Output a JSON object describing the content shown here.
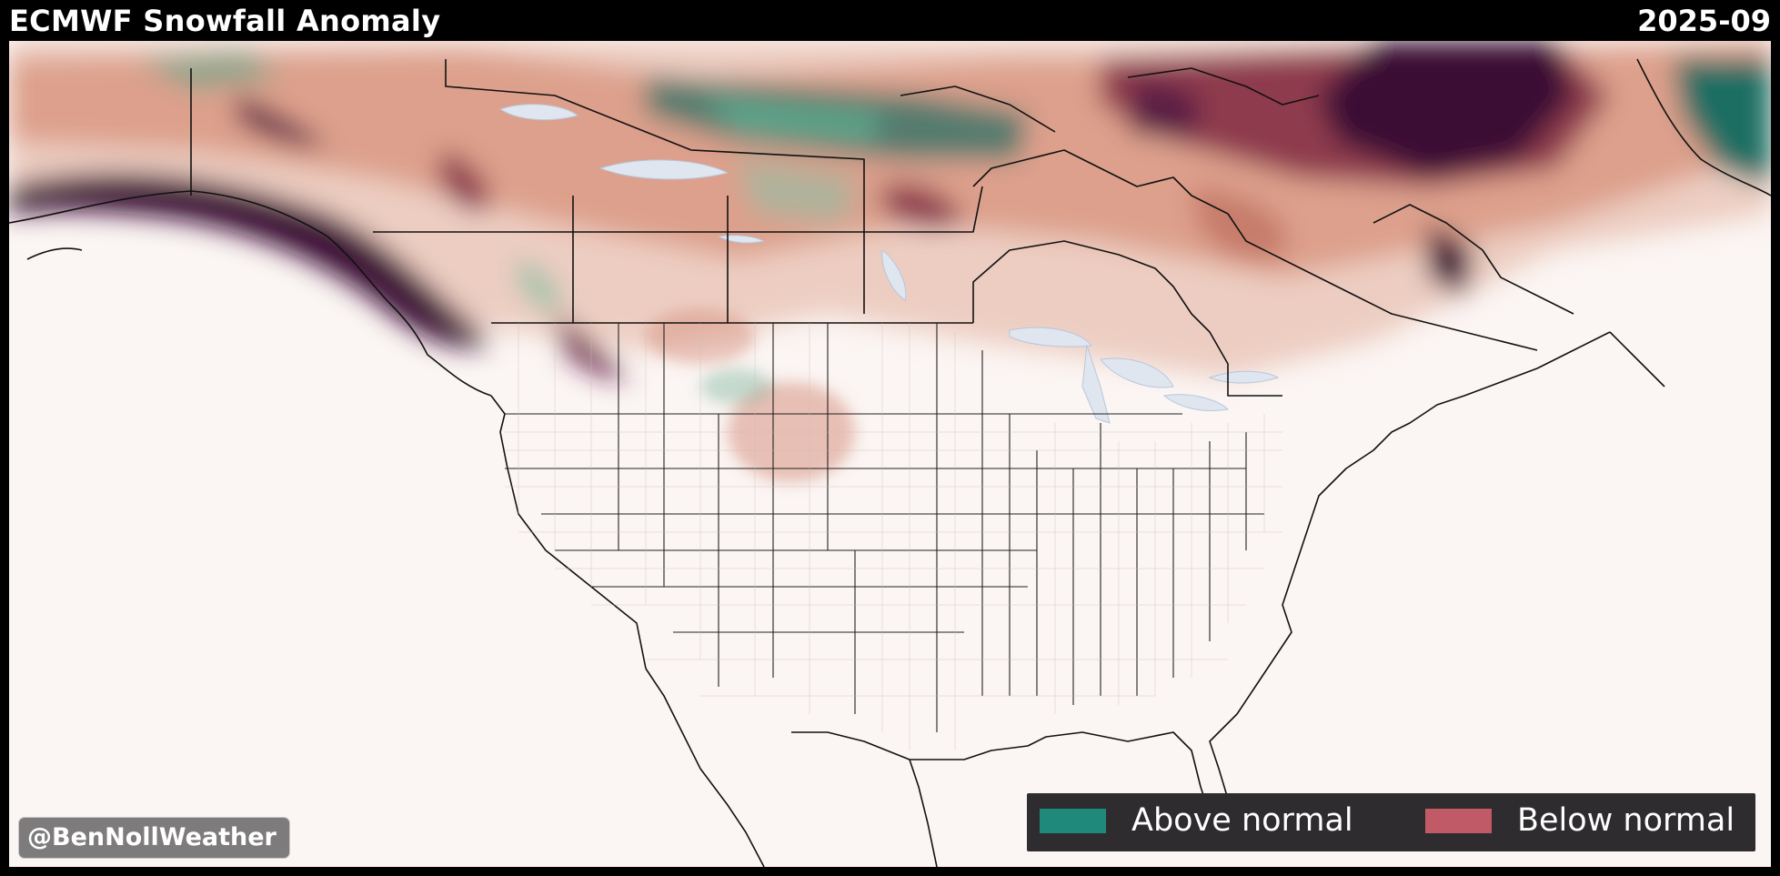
{
  "header": {
    "title": "ECMWF Snowfall Anomaly",
    "date": "2025-09"
  },
  "legend": {
    "items": [
      {
        "label": "Above normal",
        "color": "#1f8a7b"
      },
      {
        "label": "Below normal",
        "color": "#c05a66"
      }
    ]
  },
  "credit": {
    "handle": "@BenNollWeather"
  },
  "colors": {
    "background": "#fbf5f3",
    "light_below": "#eccbbf",
    "mid_below": "#d38a76",
    "strong_below": "#8e3a4e",
    "extreme_below": "#3b0f36",
    "light_above": "#cfe3d3",
    "mid_above": "#5fa58b",
    "strong_above": "#1c6e63",
    "water": "#dfe6ef",
    "border": "#111111"
  }
}
